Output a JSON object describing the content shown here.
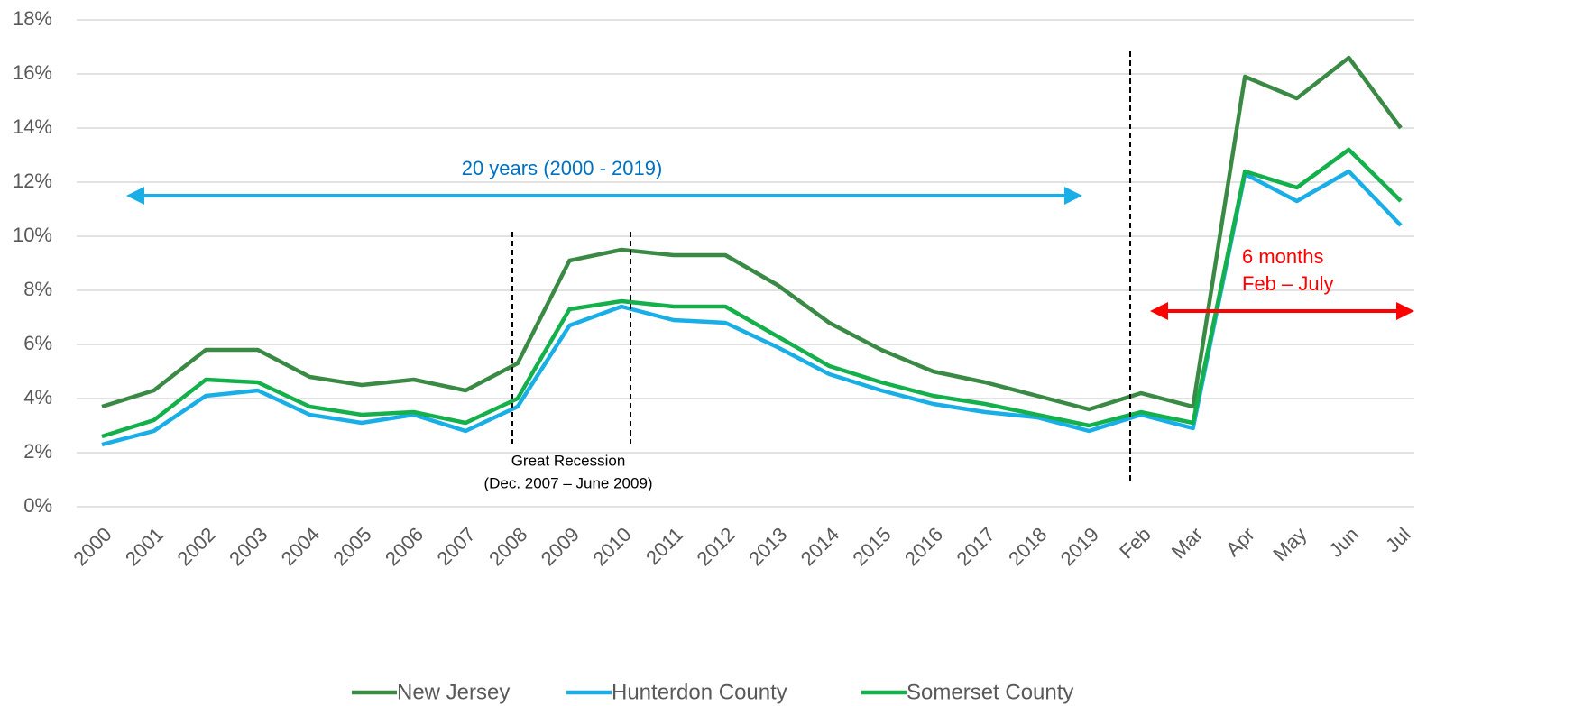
{
  "chart_data": {
    "type": "line",
    "categories": [
      "2000",
      "2001",
      "2002",
      "2003",
      "2004",
      "2005",
      "2006",
      "2007",
      "2008",
      "2009",
      "2010",
      "2011",
      "2012",
      "2013",
      "2014",
      "2015",
      "2016",
      "2017",
      "2018",
      "2019",
      "Feb",
      "Mar",
      "Apr",
      "May",
      "Jun",
      "Jul"
    ],
    "series": [
      {
        "name": "New Jersey",
        "color": "#3a8a45",
        "values": [
          3.7,
          4.3,
          5.8,
          5.8,
          4.8,
          4.5,
          4.7,
          4.3,
          5.3,
          9.1,
          9.5,
          9.3,
          9.3,
          8.2,
          6.8,
          5.8,
          5.0,
          4.6,
          4.1,
          3.6,
          4.2,
          3.7,
          15.9,
          15.1,
          16.6,
          14.0
        ]
      },
      {
        "name": "Hunterdon County",
        "color": "#1aaee6",
        "values": [
          2.3,
          2.8,
          4.1,
          4.3,
          3.4,
          3.1,
          3.4,
          2.8,
          3.7,
          6.7,
          7.4,
          6.9,
          6.8,
          5.9,
          4.9,
          4.3,
          3.8,
          3.5,
          3.3,
          2.8,
          3.4,
          2.9,
          12.3,
          11.3,
          12.4,
          10.4
        ]
      },
      {
        "name": "Somerset County",
        "color": "#13b04b",
        "values": [
          2.6,
          3.2,
          4.7,
          4.6,
          3.7,
          3.4,
          3.5,
          3.1,
          4.0,
          7.3,
          7.6,
          7.4,
          7.4,
          6.3,
          5.2,
          4.6,
          4.1,
          3.8,
          3.4,
          3.0,
          3.5,
          3.1,
          12.4,
          11.8,
          13.2,
          11.3
        ]
      }
    ],
    "ylim": [
      0,
      18
    ],
    "yticks": [
      {
        "value": 0,
        "label": "0%"
      },
      {
        "value": 2,
        "label": "2%"
      },
      {
        "value": 4,
        "label": "4%"
      },
      {
        "value": 6,
        "label": "6%"
      },
      {
        "value": 8,
        "label": "8%"
      },
      {
        "value": 10,
        "label": "10%"
      },
      {
        "value": 12,
        "label": "12%"
      },
      {
        "value": 14,
        "label": "14%"
      },
      {
        "value": 16,
        "label": "16%"
      },
      {
        "value": 18,
        "label": "18%"
      }
    ],
    "grid": true,
    "legend": "bottom",
    "annotations": {
      "period": "20 years (2000 - 2019)",
      "recession_title": "Great Recession",
      "recession_dates": "(Dec. 2007 – June 2009)",
      "months_line1": "6 months",
      "months_line2": "Feb – July"
    }
  }
}
